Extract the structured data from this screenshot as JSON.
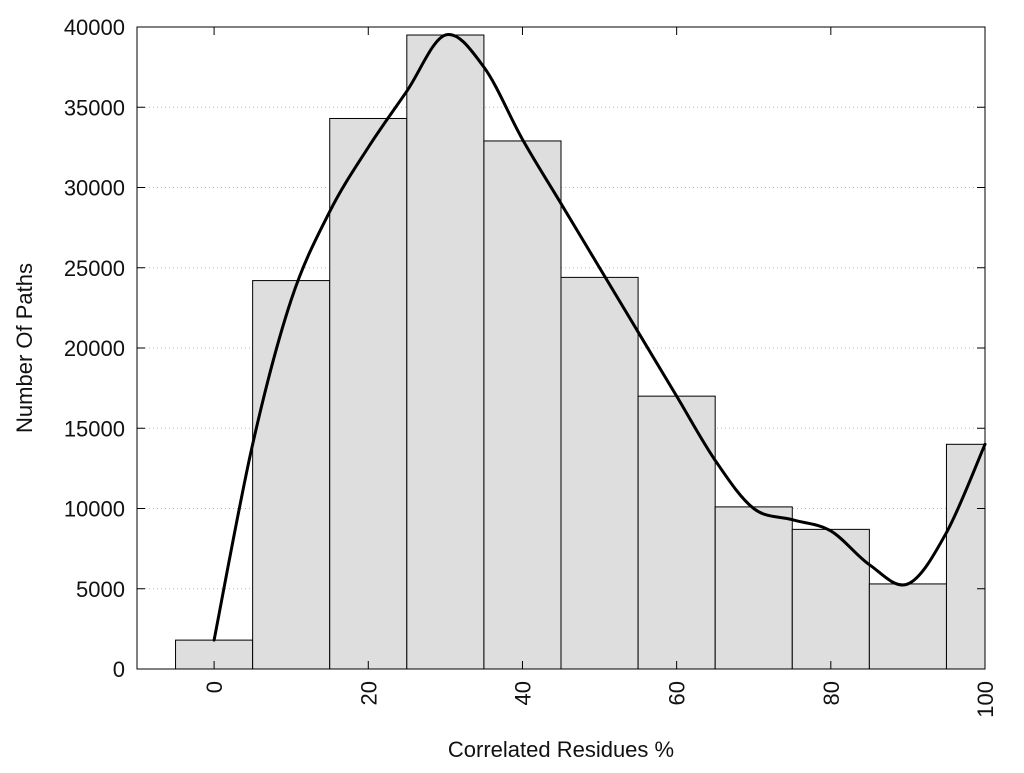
{
  "chart_data": {
    "type": "bar",
    "title": "",
    "xlabel": "Correlated Residues %",
    "ylabel": "Number Of Paths",
    "x": [
      0,
      10,
      20,
      30,
      40,
      50,
      60,
      70,
      80,
      90,
      100
    ],
    "values": [
      1800,
      24200,
      34300,
      39500,
      32900,
      24400,
      17000,
      10100,
      8700,
      5300,
      14000
    ],
    "bin_width": 10,
    "xlim": [
      -10,
      100
    ],
    "ylim": [
      0,
      40000
    ],
    "x_ticks": [
      0,
      20,
      40,
      60,
      80,
      100
    ],
    "y_ticks": [
      0,
      5000,
      10000,
      15000,
      20000,
      25000,
      30000,
      35000,
      40000
    ],
    "x_tick_labels": [
      "0",
      "20",
      "40",
      "60",
      "80",
      "100"
    ],
    "y_tick_labels": [
      "0",
      "5000",
      "10000",
      "15000",
      "20000",
      "25000",
      "30000",
      "35000",
      "40000"
    ],
    "grid": "horizontal dotted",
    "legend": "none",
    "curve": {
      "points": [
        [
          0,
          1800
        ],
        [
          5,
          14000
        ],
        [
          10,
          23000
        ],
        [
          15,
          28500
        ],
        [
          20,
          32500
        ],
        [
          25,
          36000
        ],
        [
          30,
          39500
        ],
        [
          35,
          37500
        ],
        [
          40,
          33000
        ],
        [
          45,
          29000
        ],
        [
          50,
          25000
        ],
        [
          55,
          21000
        ],
        [
          60,
          17000
        ],
        [
          65,
          13000
        ],
        [
          70,
          10000
        ],
        [
          75,
          9300
        ],
        [
          80,
          8600
        ],
        [
          85,
          6500
        ],
        [
          90,
          5300
        ],
        [
          95,
          8500
        ],
        [
          100,
          14000
        ]
      ]
    },
    "colors": {
      "bar_fill": "#dedede",
      "bar_stroke": "#000000",
      "curve": "#000000",
      "grid": "#bbbbbb",
      "axis": "#000000"
    }
  }
}
